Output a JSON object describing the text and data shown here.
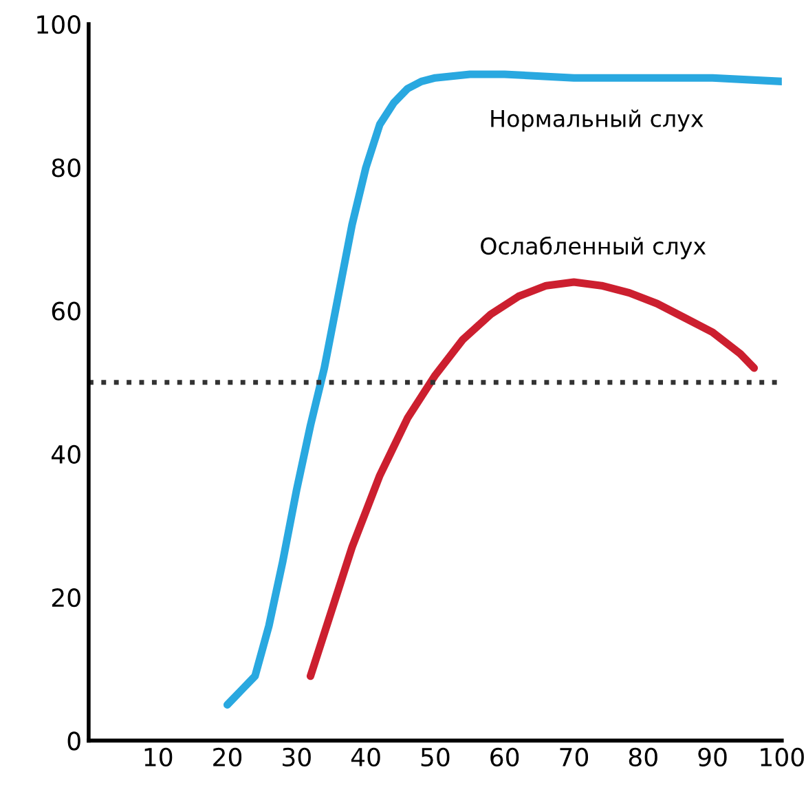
{
  "chart_data": {
    "type": "line",
    "series": [
      {
        "name": "Нормальный слух",
        "color": "#29a8e0",
        "x": [
          20,
          22,
          24,
          26,
          28,
          30,
          32,
          34,
          36,
          38,
          40,
          42,
          44,
          46,
          48,
          50,
          55,
          60,
          70,
          80,
          90,
          100
        ],
        "values": [
          5,
          7,
          9,
          16,
          25,
          35,
          44,
          52,
          62,
          72,
          80,
          86,
          89,
          91,
          92,
          92.5,
          93,
          93,
          92.5,
          92.5,
          92.5,
          92
        ]
      },
      {
        "name": "Ослабленный слух",
        "color": "#cc1f2f",
        "x": [
          32,
          34,
          36,
          38,
          40,
          42,
          44,
          46,
          48,
          50,
          54,
          58,
          62,
          66,
          70,
          74,
          78,
          82,
          86,
          90,
          94,
          96
        ],
        "values": [
          9,
          15,
          21,
          27,
          32,
          37,
          41,
          45,
          48,
          51,
          56,
          59.5,
          62,
          63.5,
          64,
          63.5,
          62.5,
          61,
          59,
          57,
          54,
          52
        ]
      }
    ],
    "xlim": [
      0,
      100
    ],
    "ylim": [
      0,
      100
    ],
    "xticks": [
      10,
      20,
      30,
      40,
      50,
      60,
      70,
      80,
      90,
      100
    ],
    "yticks": [
      0,
      20,
      40,
      60,
      80,
      100
    ],
    "ref_lines": [
      {
        "axis": "y",
        "value": 50,
        "color": "#333333",
        "line_style": "dotted"
      }
    ],
    "grid": false,
    "legend": false,
    "marker": "none",
    "line_style": "solid"
  }
}
